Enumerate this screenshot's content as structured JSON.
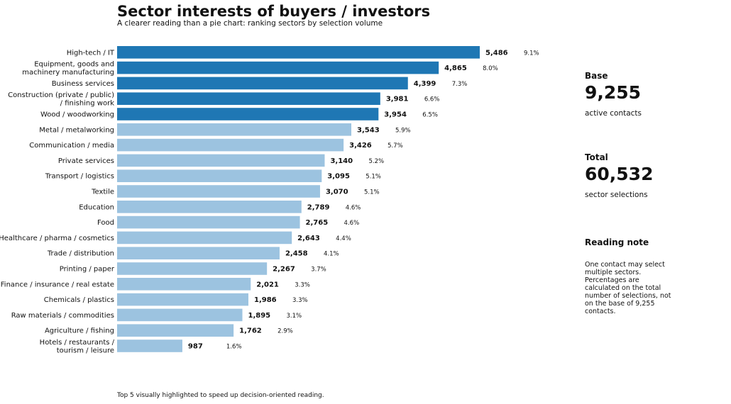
{
  "title": "Sector interests of buyers / investors",
  "subtitle": "A clearer reading than a pie chart: ranking sectors by selection volume",
  "footnote": "Top 5 visually highlighted to speed up decision-oriented reading.",
  "colors": {
    "highlight": "#1f77b4",
    "normal": "#9cc3e0",
    "text": "#111111"
  },
  "stats": {
    "base": {
      "heading": "Base",
      "value": "9,255",
      "caption": "active contacts"
    },
    "total": {
      "heading": "Total",
      "value": "60,532",
      "caption": "sector selections"
    }
  },
  "reading_note": {
    "heading": "Reading note",
    "text": "One contact may select multiple sectors. Percentages are calculated on the total number of selections, not on the base of 9,255 contacts."
  },
  "chart_data": {
    "type": "bar",
    "orientation": "horizontal",
    "highlight_top": 5,
    "xlim": [
      0,
      5486
    ],
    "categories": [
      "High-tech / IT",
      "Equipment, goods and\nmachinery manufacturing",
      "Business services",
      "Construction (private / public)\n/ finishing work",
      "Wood / woodworking",
      "Metal / metalworking",
      "Communication / media",
      "Private services",
      "Transport / logistics",
      "Textile",
      "Education",
      "Food",
      "Healthcare / pharma / cosmetics",
      "Trade / distribution",
      "Printing / paper",
      "Finance / insurance / real estate",
      "Chemicals / plastics",
      "Raw materials / commodities",
      "Agriculture / fishing",
      "Hotels / restaurants /\ntourism / leisure"
    ],
    "values": [
      5486,
      4865,
      4399,
      3981,
      3954,
      3543,
      3426,
      3140,
      3095,
      3070,
      2789,
      2765,
      2643,
      2458,
      2267,
      2021,
      1986,
      1895,
      1762,
      987
    ],
    "value_labels": [
      "5,486",
      "4,865",
      "4,399",
      "3,981",
      "3,954",
      "3,543",
      "3,426",
      "3,140",
      "3,095",
      "3,070",
      "2,789",
      "2,765",
      "2,643",
      "2,458",
      "2,267",
      "2,021",
      "1,986",
      "1,895",
      "1,762",
      "987"
    ],
    "percent_labels": [
      "9.1%",
      "8.0%",
      "7.3%",
      "6.6%",
      "6.5%",
      "5.9%",
      "5.7%",
      "5.2%",
      "5.1%",
      "5.1%",
      "4.6%",
      "4.6%",
      "4.4%",
      "4.1%",
      "3.7%",
      "3.3%",
      "3.3%",
      "3.1%",
      "2.9%",
      "1.6%"
    ]
  }
}
